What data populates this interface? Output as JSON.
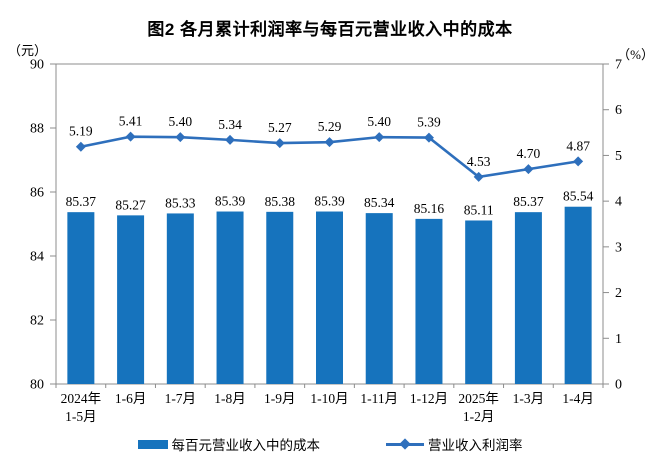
{
  "title": "图2 各月累计利润率与每百元营业收入中的成本",
  "left_unit": "（元）",
  "right_unit": "（%）",
  "colors": {
    "bar": "#1673BD",
    "line": "#2E6FBC",
    "axis": "#8C8C8C",
    "text": "#000000"
  },
  "legend": [
    {
      "type": "bar",
      "label": "每百元营业收入中的成本"
    },
    {
      "type": "line",
      "label": "营业收入利润率"
    }
  ],
  "chart_data": {
    "type": "bar+line combo",
    "title": "图2 各月累计利润率与每百元营业收入中的成本",
    "categories": [
      "2024年\n1-5月",
      "1-6月",
      "1-7月",
      "1-8月",
      "1-9月",
      "1-10月",
      "1-11月",
      "1-12月",
      "2025年\n1-2月",
      "1-3月",
      "1-4月"
    ],
    "series": [
      {
        "name": "每百元营业收入中的成本",
        "type": "bar",
        "axis": "left",
        "values": [
          85.37,
          85.27,
          85.33,
          85.39,
          85.38,
          85.39,
          85.34,
          85.16,
          85.11,
          85.37,
          85.54
        ]
      },
      {
        "name": "营业收入利润率",
        "type": "line",
        "axis": "right",
        "values": [
          5.19,
          5.41,
          5.4,
          5.34,
          5.27,
          5.29,
          5.4,
          5.39,
          4.53,
          4.7,
          4.87
        ]
      }
    ],
    "left_axis": {
      "unit": "元",
      "min": 80,
      "max": 90,
      "ticks": [
        80,
        82,
        84,
        86,
        88,
        90
      ]
    },
    "right_axis": {
      "unit": "%",
      "min": 0,
      "max": 7,
      "ticks": [
        0,
        1,
        2,
        3,
        4,
        5,
        6,
        7
      ]
    },
    "grid": false,
    "data_labels": true,
    "legend_position": "bottom"
  }
}
